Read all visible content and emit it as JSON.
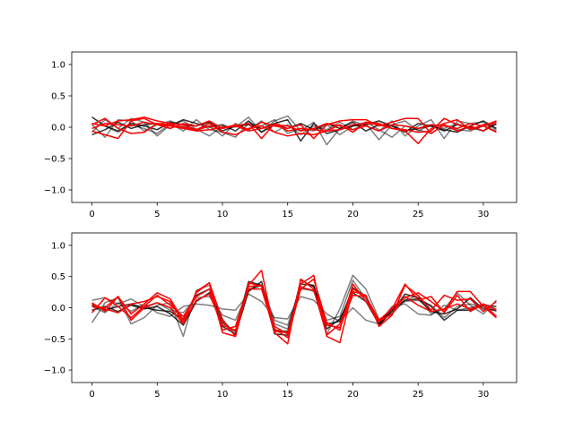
{
  "chart_data": [
    {
      "type": "line",
      "x": [
        0,
        1,
        2,
        3,
        4,
        5,
        6,
        7,
        8,
        9,
        10,
        11,
        12,
        13,
        14,
        15,
        16,
        17,
        18,
        19,
        20,
        21,
        22,
        23,
        24,
        25,
        26,
        27,
        28,
        29,
        30,
        31
      ],
      "ylim": [
        -1.2,
        1.2
      ],
      "xlim": [
        -1.55,
        32.55
      ],
      "xticks": [
        "0",
        "5",
        "10",
        "15",
        "20",
        "25",
        "30"
      ],
      "yticks": [
        "−1.0",
        "−0.5",
        "0.0",
        "0.5",
        "1.0"
      ],
      "grid": false,
      "series": [
        {
          "color": "#000000",
          "alpha": 0.5,
          "values": [
            -0.08,
            0.12,
            -0.02,
            0.14,
            0.08,
            -0.14,
            0.04,
            0.1,
            -0.03,
            -0.14,
            0.02,
            0.0,
            0.16,
            -0.08,
            0.1,
            0.18,
            -0.06,
            0.08,
            -0.28,
            -0.02,
            0.1,
            0.02,
            -0.06,
            0.1,
            -0.14,
            0.02,
            0.12,
            -0.18,
            0.1,
            0.06,
            0.08,
            -0.04
          ]
        },
        {
          "color": "#000000",
          "alpha": 0.5,
          "values": [
            0.04,
            -0.16,
            0.12,
            0.1,
            -0.06,
            0.04,
            0.1,
            0.02,
            -0.06,
            0.02,
            -0.14,
            0.06,
            -0.04,
            0.1,
            -0.08,
            0.04,
            -0.12,
            0.02,
            -0.04,
            0.08,
            -0.04,
            0.06,
            -0.2,
            0.04,
            0.1,
            -0.06,
            0.04,
            -0.02,
            0.06,
            -0.04,
            0.02,
            0.04
          ]
        },
        {
          "color": "#000000",
          "alpha": 0.5,
          "values": [
            0.06,
            0.02,
            -0.08,
            0.04,
            -0.02,
            -0.1,
            0.06,
            -0.06,
            0.12,
            -0.04,
            -0.08,
            -0.16,
            0.06,
            0.02,
            0.12,
            -0.1,
            -0.02,
            -0.06,
            0.04,
            -0.12,
            0.02,
            0.08,
            -0.04,
            -0.16,
            0.02,
            -0.04,
            -0.1,
            0.04,
            -0.04,
            -0.06,
            0.02,
            -0.06
          ]
        },
        {
          "color": "#000000",
          "alpha": 0.8,
          "values": [
            0.16,
            0.02,
            -0.06,
            0.06,
            0.02,
            -0.04,
            0.08,
            0.04,
            0.02,
            0.08,
            -0.06,
            0.02,
            0.04,
            -0.02,
            0.06,
            0.12,
            -0.22,
            0.06,
            -0.1,
            -0.04,
            0.02,
            0.04,
            0.1,
            0.02,
            -0.06,
            -0.02,
            0.02,
            -0.04,
            -0.08,
            0.02,
            0.1,
            -0.02
          ]
        },
        {
          "color": "#000000",
          "alpha": 0.8,
          "values": [
            -0.12,
            -0.04,
            0.08,
            -0.02,
            0.04,
            0.06,
            0.02,
            0.12,
            0.06,
            0.0,
            0.04,
            -0.06,
            0.1,
            -0.08,
            0.04,
            -0.02,
            0.06,
            -0.04,
            0.06,
            -0.02,
            0.08,
            -0.06,
            0.04,
            0.02,
            -0.08,
            0.06,
            0.02,
            -0.06,
            0.04,
            0.0,
            -0.06,
            0.06
          ]
        },
        {
          "color": "#ff0000",
          "alpha": 1,
          "values": [
            -0.06,
            -0.12,
            -0.18,
            0.1,
            0.14,
            0.04,
            -0.02,
            0.06,
            0.02,
            0.1,
            -0.02,
            0.04,
            -0.04,
            0.08,
            0.02,
            -0.02,
            0.04,
            -0.18,
            0.04,
            0.1,
            0.12,
            0.12,
            0.02,
            0.08,
            0.14,
            0.14,
            -0.1,
            0.04,
            -0.06,
            0.02,
            -0.06,
            0.1
          ]
        },
        {
          "color": "#ff0000",
          "alpha": 1,
          "values": [
            0.04,
            0.14,
            -0.02,
            -0.1,
            -0.08,
            0.06,
            0.04,
            0.0,
            -0.04,
            0.06,
            -0.08,
            -0.12,
            -0.02,
            0.02,
            -0.08,
            -0.14,
            -0.1,
            -0.12,
            -0.06,
            0.04,
            -0.08,
            0.08,
            0.06,
            -0.02,
            -0.06,
            -0.26,
            -0.02,
            0.06,
            0.12,
            -0.04,
            0.04,
            0.08
          ]
        },
        {
          "color": "#ff0000",
          "alpha": 1,
          "values": [
            0.06,
            0.02,
            0.1,
            0.12,
            0.16,
            0.1,
            0.06,
            0.04,
            -0.04,
            0.02,
            -0.02,
            0.02,
            0.06,
            -0.18,
            0.06,
            -0.06,
            -0.02,
            -0.04,
            -0.06,
            -0.04,
            0.04,
            0.06,
            0.04,
            -0.02,
            -0.04,
            -0.08,
            -0.06,
            0.14,
            0.04,
            -0.02,
            0.02,
            0.1
          ]
        },
        {
          "color": "#ff0000",
          "alpha": 1,
          "values": [
            -0.02,
            0.06,
            0.04,
            0.02,
            0.08,
            0.04,
            0.02,
            -0.02,
            -0.06,
            -0.04,
            0.0,
            0.02,
            -0.06,
            -0.02,
            0.04,
            0.02,
            -0.06,
            -0.02,
            0.06,
            0.02,
            -0.04,
            0.02,
            -0.06,
            0.04,
            0.02,
            -0.02,
            0.04,
            0.02,
            -0.02,
            0.06,
            0.02,
            -0.08
          ]
        }
      ]
    },
    {
      "type": "line",
      "x": [
        0,
        1,
        2,
        3,
        4,
        5,
        6,
        7,
        8,
        9,
        10,
        11,
        12,
        13,
        14,
        15,
        16,
        17,
        18,
        19,
        20,
        21,
        22,
        23,
        24,
        25,
        26,
        27,
        28,
        29,
        30,
        31
      ],
      "ylim": [
        -1.2,
        1.2
      ],
      "xlim": [
        -1.55,
        32.55
      ],
      "xticks": [
        "0",
        "5",
        "10",
        "15",
        "20",
        "25",
        "30"
      ],
      "yticks": [
        "−1.0",
        "−0.5",
        "0.0",
        "0.5",
        "1.0"
      ],
      "grid": false,
      "series": [
        {
          "color": "#000000",
          "alpha": 0.5,
          "values": [
            -0.24,
            0.08,
            0.16,
            -0.26,
            -0.16,
            0.04,
            0.08,
            -0.46,
            0.28,
            0.36,
            -0.18,
            -0.44,
            0.3,
            0.36,
            -0.26,
            -0.34,
            0.3,
            0.28,
            -0.42,
            -0.02,
            0.52,
            0.3,
            -0.18,
            -0.1,
            0.12,
            0.2,
            -0.1,
            -0.02,
            0.24,
            0.04,
            -0.1,
            0.12
          ]
        },
        {
          "color": "#000000",
          "alpha": 0.5,
          "values": [
            0.12,
            0.16,
            0.06,
            0.14,
            0.02,
            0.08,
            -0.04,
            -0.08,
            0.16,
            0.18,
            -0.12,
            -0.2,
            0.28,
            0.36,
            -0.2,
            -0.28,
            0.34,
            0.26,
            -0.2,
            -0.14,
            0.44,
            0.14,
            -0.28,
            -0.04,
            0.1,
            0.12,
            0.04,
            -0.16,
            0.02,
            0.06,
            0.02,
            -0.06
          ]
        },
        {
          "color": "#000000",
          "alpha": 0.5,
          "values": [
            0.02,
            -0.08,
            0.08,
            -0.06,
            0.06,
            -0.08,
            -0.14,
            0.02,
            0.06,
            0.04,
            -0.02,
            -0.04,
            0.22,
            0.1,
            -0.16,
            -0.18,
            0.18,
            0.12,
            -0.1,
            -0.22,
            0.0,
            -0.2,
            -0.26,
            0.02,
            0.06,
            -0.1,
            -0.12,
            0.04,
            -0.04,
            0.0,
            0.06,
            -0.02
          ]
        },
        {
          "color": "#000000",
          "alpha": 0.8,
          "values": [
            0.04,
            -0.04,
            0.02,
            0.06,
            0.0,
            -0.04,
            -0.06,
            -0.18,
            0.2,
            0.3,
            -0.24,
            -0.38,
            0.42,
            0.36,
            -0.42,
            -0.44,
            0.44,
            0.34,
            -0.26,
            -0.22,
            0.32,
            0.18,
            -0.28,
            -0.06,
            0.22,
            0.16,
            0.02,
            -0.2,
            -0.04,
            -0.04,
            0.04,
            0.02
          ]
        },
        {
          "color": "#000000",
          "alpha": 0.8,
          "values": [
            -0.04,
            0.02,
            -0.06,
            0.04,
            -0.02,
            0.02,
            -0.1,
            -0.28,
            0.1,
            0.24,
            -0.3,
            -0.42,
            0.26,
            0.42,
            -0.36,
            -0.38,
            0.38,
            0.36,
            -0.34,
            -0.18,
            0.24,
            0.1,
            -0.26,
            -0.02,
            0.12,
            0.14,
            -0.06,
            -0.1,
            -0.02,
            0.16,
            -0.02,
            -0.04
          ]
        },
        {
          "color": "#ff0000",
          "alpha": 1,
          "values": [
            0.08,
            -0.06,
            0.18,
            -0.1,
            0.06,
            0.24,
            0.14,
            -0.2,
            0.24,
            0.4,
            -0.4,
            -0.46,
            0.36,
            0.6,
            -0.4,
            -0.58,
            0.46,
            0.3,
            -0.44,
            -0.26,
            0.26,
            0.2,
            -0.3,
            -0.12,
            0.36,
            0.2,
            -0.04,
            0.2,
            0.12,
            0.14,
            -0.06,
            0.1
          ]
        },
        {
          "color": "#ff0000",
          "alpha": 1,
          "values": [
            -0.08,
            0.16,
            0.02,
            -0.16,
            0.02,
            0.2,
            0.04,
            -0.14,
            0.18,
            0.3,
            -0.36,
            -0.3,
            0.34,
            0.36,
            -0.3,
            -0.42,
            0.38,
            0.52,
            -0.46,
            -0.56,
            0.3,
            0.18,
            -0.2,
            -0.02,
            0.38,
            0.12,
            0.18,
            -0.08,
            0.2,
            -0.06,
            0.06,
            -0.14
          ]
        },
        {
          "color": "#ff0000",
          "alpha": 1,
          "values": [
            0.02,
            0.0,
            0.18,
            -0.2,
            0.0,
            0.08,
            0.0,
            -0.26,
            0.26,
            0.4,
            -0.2,
            -0.46,
            0.4,
            0.34,
            -0.34,
            -0.48,
            0.3,
            0.46,
            -0.24,
            -0.36,
            0.38,
            0.1,
            -0.22,
            0.0,
            0.16,
            0.24,
            0.1,
            -0.06,
            0.26,
            0.26,
            0.02,
            -0.16
          ]
        },
        {
          "color": "#ff0000",
          "alpha": 1,
          "values": [
            0.06,
            -0.02,
            -0.08,
            0.06,
            0.1,
            0.18,
            0.1,
            -0.24,
            0.12,
            0.22,
            -0.28,
            -0.36,
            0.3,
            0.3,
            -0.38,
            -0.4,
            0.32,
            0.28,
            -0.28,
            -0.32,
            0.2,
            0.18,
            -0.22,
            -0.1,
            0.18,
            0.04,
            -0.06,
            -0.02,
            0.06,
            -0.02,
            0.06,
            -0.04
          ]
        }
      ]
    }
  ]
}
